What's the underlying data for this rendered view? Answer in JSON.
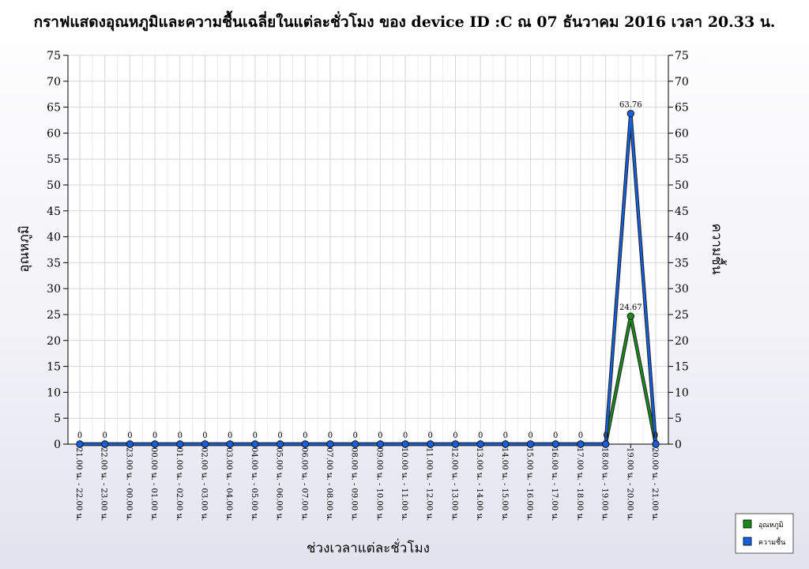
{
  "chart_data": {
    "type": "line",
    "title": "กราฟแสดงอุณหภูมิและความชื้นเฉลี่ยในแต่ละชั่วโมง ของ device ID :C ณ 07 ธันวาคม 2016 เวลา 20.33 น.",
    "xlabel": "ช่วงเวลาแต่ละชั่วโมง",
    "ylabel": "อุณหภูมิ",
    "ylabel_right": "ความชื้น",
    "ylim": [
      0,
      75
    ],
    "ylim_right": [
      0,
      75
    ],
    "yticks": [
      0,
      5,
      10,
      15,
      20,
      25,
      30,
      35,
      40,
      45,
      50,
      55,
      60,
      65,
      70,
      75
    ],
    "grid": true,
    "legend_position": "bottom-right",
    "categories": [
      "21.00 น. - 22.00 น.",
      "22.00 น. - 23.00 น.",
      "23.00 น. - 00.00 น.",
      "00.00 น. - 01.00 น.",
      "01.00 น. - 02.00 น.",
      "02.00 น. - 03.00 น.",
      "03.00 น. - 04.00 น.",
      "04.00 น. - 05.00 น.",
      "05.00 น. - 06.00 น.",
      "06.00 น. - 07.00 น.",
      "07.00 น. - 08.00 น.",
      "08.00 น. - 09.00 น.",
      "09.00 น. - 10.00 น.",
      "10.00 น. - 11.00 น.",
      "11.00 น. - 12.00 น.",
      "12.00 น. - 13.00 น.",
      "13.00 น. - 14.00 น.",
      "14.00 น. - 15.00 น.",
      "15.00 น. - 16.00 น.",
      "16.00 น. - 17.00 น.",
      "17.00 น. - 18.00 น.",
      "18.00 น. - 19.00 น.",
      "19.00 น. - 20.00 น.",
      "20.00 น. - 21.00 น."
    ],
    "series": [
      {
        "name": "อุณหภูมิ",
        "color": "#1a8a1a",
        "values": [
          0,
          0,
          0,
          0,
          0,
          0,
          0,
          0,
          0,
          0,
          0,
          0,
          0,
          0,
          0,
          0,
          0,
          0,
          0,
          0,
          0,
          0,
          24.67,
          0
        ],
        "labels": [
          "0",
          "0",
          "0",
          "0",
          "0",
          "0",
          "0",
          "0",
          "0",
          "0",
          "0",
          "0",
          "0",
          "0",
          "0",
          "0",
          "0",
          "0",
          "0",
          "0",
          "0",
          "0",
          "24.67",
          "0"
        ]
      },
      {
        "name": "ความชื้น",
        "color": "#1560e0",
        "values": [
          0,
          0,
          0,
          0,
          0,
          0,
          0,
          0,
          0,
          0,
          0,
          0,
          0,
          0,
          0,
          0,
          0,
          0,
          0,
          0,
          0,
          0,
          63.76,
          0
        ],
        "labels": [
          "0",
          "0",
          "0",
          "0",
          "0",
          "0",
          "0",
          "0",
          "0",
          "0",
          "0",
          "0",
          "0",
          "0",
          "0",
          "0",
          "0",
          "0",
          "0",
          "0",
          "0",
          "0",
          "63.76",
          "0"
        ]
      }
    ]
  }
}
